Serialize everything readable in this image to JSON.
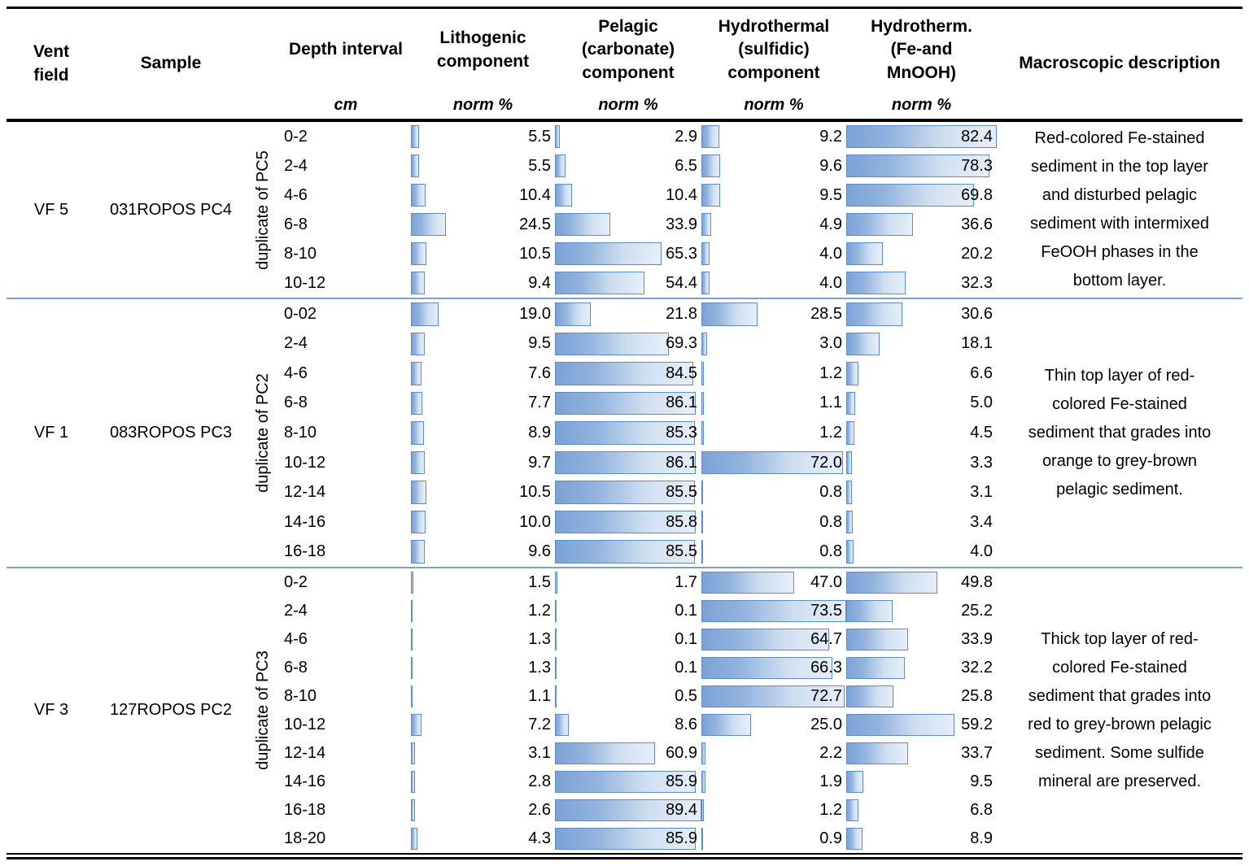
{
  "header": {
    "columns": [
      {
        "label": "Vent\nfield",
        "sub": ""
      },
      {
        "label": "Sample",
        "sub": ""
      },
      {
        "label": "",
        "sub": ""
      },
      {
        "label": "Depth interval",
        "sub": "cm"
      },
      {
        "label": "Lithogenic\ncomponent",
        "sub": "norm %"
      },
      {
        "label": "Pelagic\n(carbonate)\ncomponent",
        "sub": "norm %"
      },
      {
        "label": "Hydrothermal\n(sulfidic)\ncomponent",
        "sub": "norm %"
      },
      {
        "label": "Hydrotherm.\n(Fe-and\nMnOOH)",
        "sub": "norm %"
      },
      {
        "label": "Macroscopic description",
        "sub": ""
      }
    ]
  },
  "colors": {
    "bar_border": "#5d8cc7",
    "bar_fill_start": "#7ba2d6",
    "bar_fill_end": "#e7eef9",
    "group_separator": "#7f9fc9",
    "rule": "#000000"
  },
  "bar_scale_max": {
    "lithogenic": 100,
    "pelagic": 89.4,
    "sulfidic": 73.5,
    "femn": 82.4
  },
  "groups": [
    {
      "vent_field": "VF 5",
      "sample": "031ROPOS PC4",
      "duplicate_label": "duplicate of PC5",
      "description": "Red-colored Fe-stained\nsediment in the top layer\nand disturbed pelagic\nsediment with intermixed\nFeOOH phases in the\nbottom layer.",
      "rows": [
        {
          "depth": "0-2",
          "lithogenic": 5.5,
          "pelagic": 2.9,
          "sulfidic": 9.2,
          "femn": 82.4
        },
        {
          "depth": "2-4",
          "lithogenic": 5.5,
          "pelagic": 6.5,
          "sulfidic": 9.6,
          "femn": 78.3
        },
        {
          "depth": "4-6",
          "lithogenic": 10.4,
          "pelagic": 10.4,
          "sulfidic": 9.5,
          "femn": 69.8
        },
        {
          "depth": "6-8",
          "lithogenic": 24.5,
          "pelagic": 33.9,
          "sulfidic": 4.9,
          "femn": 36.6
        },
        {
          "depth": "8-10",
          "lithogenic": 10.5,
          "pelagic": 65.3,
          "sulfidic": 4.0,
          "femn": 20.2
        },
        {
          "depth": "10-12",
          "lithogenic": 9.4,
          "pelagic": 54.4,
          "sulfidic": 4.0,
          "femn": 32.3
        }
      ]
    },
    {
      "vent_field": "VF 1",
      "sample": "083ROPOS PC3",
      "duplicate_label": "duplicate of PC2",
      "description": "Thin top layer of red-\ncolored Fe-stained\nsediment that grades into\norange to grey-brown\npelagic sediment.",
      "rows": [
        {
          "depth": "0-02",
          "lithogenic": 19.0,
          "pelagic": 21.8,
          "sulfidic": 28.5,
          "femn": 30.6
        },
        {
          "depth": "2-4",
          "lithogenic": 9.5,
          "pelagic": 69.3,
          "sulfidic": 3.0,
          "femn": 18.1
        },
        {
          "depth": "4-6",
          "lithogenic": 7.6,
          "pelagic": 84.5,
          "sulfidic": 1.2,
          "femn": 6.6
        },
        {
          "depth": "6-8",
          "lithogenic": 7.7,
          "pelagic": 86.1,
          "sulfidic": 1.1,
          "femn": 5.0
        },
        {
          "depth": "8-10",
          "lithogenic": 8.9,
          "pelagic": 85.3,
          "sulfidic": 1.2,
          "femn": 4.5
        },
        {
          "depth": "10-12",
          "lithogenic": 9.7,
          "pelagic": 86.1,
          "sulfidic": 72.0,
          "femn": 3.3
        },
        {
          "depth": "12-14",
          "lithogenic": 10.5,
          "pelagic": 85.5,
          "sulfidic": 0.8,
          "femn": 3.1
        },
        {
          "depth": "14-16",
          "lithogenic": 10.0,
          "pelagic": 85.8,
          "sulfidic": 0.8,
          "femn": 3.4
        },
        {
          "depth": "16-18",
          "lithogenic": 9.6,
          "pelagic": 85.5,
          "sulfidic": 0.8,
          "femn": 4.0
        }
      ]
    },
    {
      "vent_field": "VF 3",
      "sample": "127ROPOS PC2",
      "duplicate_label": "duplicate of PC3",
      "description": "Thick top layer of red-\ncolored Fe-stained\nsediment that grades into\nred to grey-brown pelagic\nsediment. Some sulfide\nmineral are preserved.",
      "rows": [
        {
          "depth": "0-2",
          "lithogenic": 1.5,
          "pelagic": 1.7,
          "sulfidic": 47.0,
          "femn": 49.8
        },
        {
          "depth": "2-4",
          "lithogenic": 1.2,
          "pelagic": 0.1,
          "sulfidic": 73.5,
          "femn": 25.2
        },
        {
          "depth": "4-6",
          "lithogenic": 1.3,
          "pelagic": 0.1,
          "sulfidic": 64.7,
          "femn": 33.9
        },
        {
          "depth": "6-8",
          "lithogenic": 1.3,
          "pelagic": 0.1,
          "sulfidic": 66.3,
          "femn": 32.2
        },
        {
          "depth": "8-10",
          "lithogenic": 1.1,
          "pelagic": 0.5,
          "sulfidic": 72.7,
          "femn": 25.8
        },
        {
          "depth": "10-12",
          "lithogenic": 7.2,
          "pelagic": 8.6,
          "sulfidic": 25.0,
          "femn": 59.2
        },
        {
          "depth": "12-14",
          "lithogenic": 3.1,
          "pelagic": 60.9,
          "sulfidic": 2.2,
          "femn": 33.7
        },
        {
          "depth": "14-16",
          "lithogenic": 2.8,
          "pelagic": 85.9,
          "sulfidic": 1.9,
          "femn": 9.5
        },
        {
          "depth": "16-18",
          "lithogenic": 2.6,
          "pelagic": 89.4,
          "sulfidic": 1.2,
          "femn": 6.8
        },
        {
          "depth": "18-20",
          "lithogenic": 4.3,
          "pelagic": 85.9,
          "sulfidic": 0.9,
          "femn": 8.9
        }
      ]
    }
  ],
  "chart_data": {
    "type": "table",
    "note": "Excel-style data bars; each component column bar length is value divided by bar_scale_max of that column"
  }
}
